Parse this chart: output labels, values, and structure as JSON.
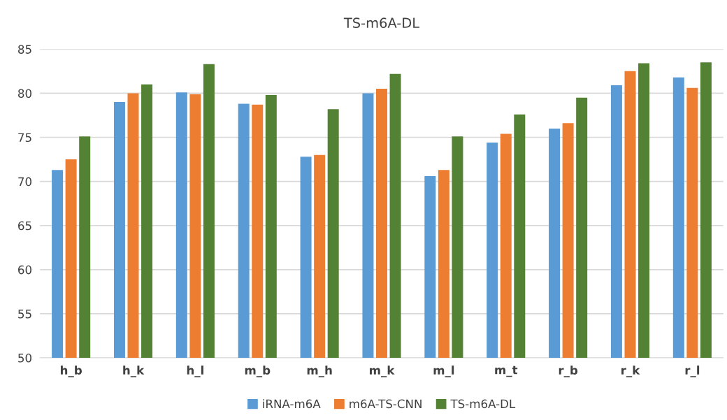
{
  "chart_data": {
    "type": "bar",
    "title": "TS-m6A-DL",
    "categories": [
      "h_b",
      "h_k",
      "h_l",
      "m_b",
      "m_h",
      "m_k",
      "m_l",
      "m_t",
      "r_b",
      "r_k",
      "r_l"
    ],
    "series": [
      {
        "name": "iRNA-m6A",
        "color": "#5b9bd5",
        "values": [
          71.3,
          79.0,
          80.1,
          78.8,
          72.8,
          80.0,
          70.6,
          74.4,
          76.0,
          80.9,
          81.8
        ]
      },
      {
        "name": "m6A-TS-CNN",
        "color": "#ed7d31",
        "values": [
          72.5,
          80.0,
          79.9,
          78.7,
          73.0,
          80.5,
          71.3,
          75.4,
          76.6,
          82.5,
          80.6
        ]
      },
      {
        "name": "TS-m6A-DL",
        "color": "#548235",
        "values": [
          75.1,
          81.0,
          83.3,
          79.8,
          78.2,
          82.2,
          75.1,
          77.6,
          79.5,
          83.4,
          83.5
        ]
      }
    ],
    "ylim": [
      50,
      85
    ],
    "yticks": [
      50,
      55,
      60,
      65,
      70,
      75,
      80,
      85
    ],
    "grid": "y",
    "legend": "bottom"
  }
}
